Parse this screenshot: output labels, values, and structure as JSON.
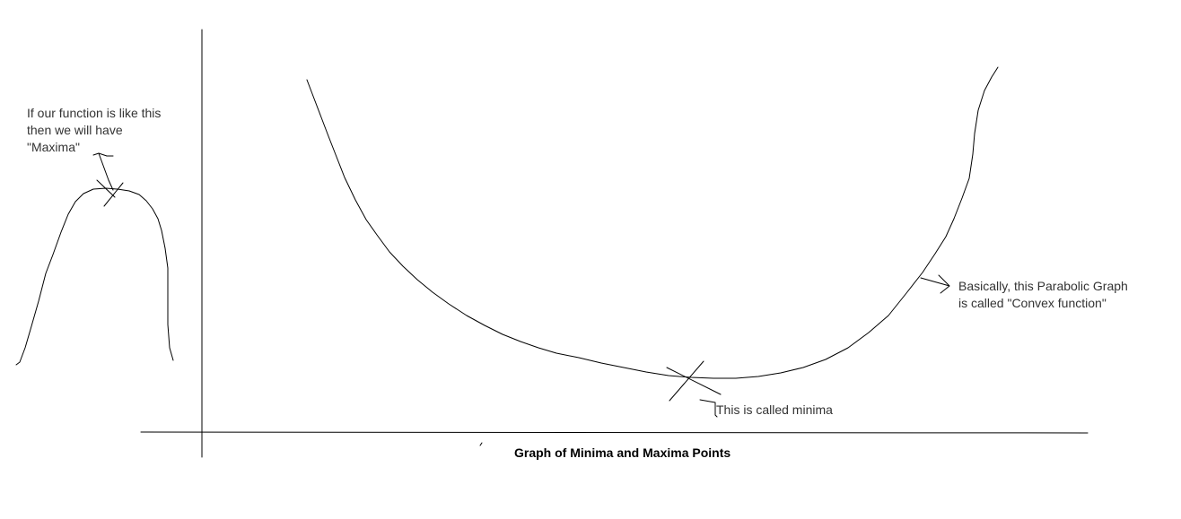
{
  "colors": {
    "stroke": "#000000",
    "text": "#333333",
    "background": "#ffffff"
  },
  "annotations": {
    "maxima_note": "If our function is like this\nthen we will have\n\"Maxima\"",
    "minima_label": "This is called minima",
    "convex_note": "Basically, this Parabolic Graph\nis called \"Convex function\""
  },
  "title": "Graph of Minima and Maxima Points"
}
